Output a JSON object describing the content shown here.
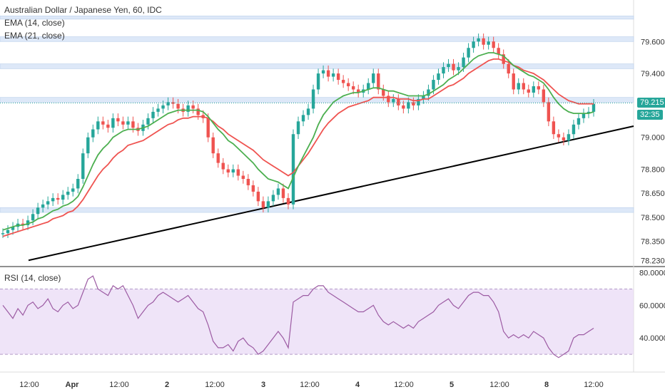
{
  "legend": {
    "symbol": "Australian Dollar / Japanese Yen, 60, IDC",
    "ema14": "EMA (14, close)",
    "ema21": "EMA (21, close)",
    "rsi": "RSI (14, close)"
  },
  "badges": {
    "price": "79.215",
    "countdown": "32:35"
  },
  "colors": {
    "up": "#26a69a",
    "down": "#ef5350",
    "ema14": "#4caf50",
    "ema21": "#ef5350",
    "trend": "#000000",
    "rsi_line": "#9c5ba3",
    "rsi_band": "#e8d9f5",
    "zone": "#dde8f8",
    "price_tag": "#26a69a",
    "countdown_tag": "#26a69a"
  },
  "chart_data": {
    "type": "candlestick",
    "price_axis": {
      "ticks": [
        "79.600",
        "79.400",
        "79.215",
        "79.000",
        "78.800",
        "78.650",
        "78.500",
        "78.350",
        "78.230"
      ]
    },
    "time_axis": {
      "ticks": [
        "12:00",
        "Apr",
        "12:00",
        "2",
        "12:00",
        "3",
        "12:00",
        "4",
        "12:00",
        "5",
        "12:00",
        "8",
        "12:00"
      ]
    },
    "resistance_zones": [
      [
        79.74,
        79.76
      ],
      [
        79.6,
        79.63
      ],
      [
        79.43,
        79.46
      ],
      [
        79.22,
        79.25
      ],
      [
        78.53,
        78.56
      ]
    ],
    "trendline": {
      "start": 78.23,
      "end": 79.07
    },
    "last_price": 79.215,
    "closes": [
      78.4,
      78.42,
      78.44,
      78.46,
      78.45,
      78.48,
      78.52,
      78.56,
      78.58,
      78.6,
      78.62,
      78.61,
      78.64,
      78.66,
      78.68,
      78.74,
      78.9,
      79.0,
      79.05,
      79.1,
      79.08,
      79.06,
      79.12,
      79.1,
      79.08,
      79.1,
      79.06,
      79.04,
      79.08,
      79.12,
      79.16,
      79.18,
      79.2,
      79.22,
      79.21,
      79.18,
      79.16,
      79.2,
      79.18,
      79.14,
      79.12,
      79.0,
      78.9,
      78.84,
      78.8,
      78.78,
      78.8,
      78.76,
      78.74,
      78.7,
      78.66,
      78.6,
      78.56,
      78.6,
      78.64,
      78.68,
      78.62,
      78.58,
      79.02,
      79.1,
      79.14,
      79.18,
      79.3,
      79.4,
      79.42,
      79.38,
      79.4,
      79.36,
      79.34,
      79.32,
      79.3,
      79.28,
      79.3,
      79.34,
      79.4,
      79.3,
      79.26,
      79.22,
      79.24,
      79.2,
      79.18,
      79.22,
      79.2,
      79.24,
      79.26,
      79.3,
      79.36,
      79.4,
      79.44,
      79.46,
      79.42,
      79.44,
      79.5,
      79.56,
      79.6,
      79.62,
      79.58,
      79.6,
      79.56,
      79.52,
      79.46,
      79.4,
      79.3,
      79.34,
      79.3,
      79.28,
      79.32,
      79.3,
      79.22,
      79.1,
      79.02,
      79.0,
      78.98,
      79.02,
      79.08,
      79.12,
      79.15,
      79.16,
      79.21
    ],
    "ema14": [
      78.42,
      78.43,
      78.44,
      78.45,
      78.45,
      78.46,
      78.47,
      78.49,
      78.5,
      78.52,
      78.54,
      78.55,
      78.57,
      78.58,
      78.6,
      78.63,
      78.69,
      78.76,
      78.83,
      78.89,
      78.93,
      78.96,
      79.0,
      79.02,
      79.04,
      79.05,
      79.05,
      79.05,
      79.06,
      79.07,
      79.09,
      79.11,
      79.13,
      79.15,
      79.16,
      79.17,
      79.17,
      79.17,
      79.17,
      79.17,
      79.16,
      79.13,
      79.09,
      79.05,
      79.02,
      78.98,
      78.96,
      78.93,
      78.9,
      78.87,
      78.84,
      78.8,
      78.77,
      78.74,
      78.73,
      78.72,
      78.7,
      78.68,
      78.75,
      78.82,
      78.88,
      78.94,
      79.0,
      79.08,
      79.14,
      79.18,
      79.22,
      79.24,
      79.26,
      79.27,
      79.28,
      79.28,
      79.29,
      79.3,
      79.31,
      79.31,
      79.3,
      79.29,
      79.29,
      79.28,
      79.27,
      79.26,
      79.26,
      79.26,
      79.26,
      79.27,
      79.29,
      79.31,
      79.33,
      79.36,
      79.38,
      79.4,
      79.43,
      79.46,
      79.49,
      79.51,
      79.52,
      79.53,
      79.53,
      79.52,
      79.51,
      79.48,
      79.45,
      79.43,
      79.41,
      79.39,
      79.38,
      79.36,
      79.34,
      79.3,
      79.25,
      79.21,
      79.18,
      79.16,
      79.15,
      79.15,
      79.15,
      79.15,
      79.16
    ],
    "ema21": [
      78.38,
      78.39,
      78.4,
      78.41,
      78.42,
      78.43,
      78.44,
      78.45,
      78.46,
      78.47,
      78.49,
      78.5,
      78.51,
      78.53,
      78.54,
      78.57,
      78.61,
      78.66,
      78.71,
      78.76,
      78.8,
      78.83,
      78.87,
      78.9,
      78.92,
      78.95,
      78.96,
      78.97,
      78.98,
      79.0,
      79.02,
      79.04,
      79.06,
      79.08,
      79.09,
      79.11,
      79.12,
      79.12,
      79.13,
      79.13,
      79.13,
      79.12,
      79.1,
      79.07,
      79.05,
      79.02,
      79.0,
      78.98,
      78.96,
      78.94,
      78.92,
      78.89,
      78.86,
      78.84,
      78.82,
      78.8,
      78.78,
      78.76,
      78.78,
      78.82,
      78.86,
      78.9,
      78.95,
      79.0,
      79.05,
      79.09,
      79.12,
      79.15,
      79.17,
      79.19,
      79.2,
      79.21,
      79.22,
      79.23,
      79.25,
      79.25,
      79.25,
      79.25,
      79.25,
      79.24,
      79.24,
      79.24,
      79.23,
      79.23,
      79.24,
      79.24,
      79.26,
      79.28,
      79.3,
      79.32,
      79.33,
      79.35,
      79.37,
      79.4,
      79.42,
      79.44,
      79.46,
      79.48,
      79.49,
      79.49,
      79.48,
      79.47,
      79.45,
      79.44,
      79.42,
      79.41,
      79.4,
      79.38,
      79.36,
      79.33,
      79.3,
      79.27,
      79.25,
      79.23,
      79.22,
      79.21,
      79.21,
      79.21,
      79.21
    ],
    "rsi": {
      "band": [
        30,
        70
      ],
      "ticks": [
        "80.0000",
        "60.0000",
        "40.0000"
      ],
      "values": [
        60,
        56,
        52,
        58,
        54,
        60,
        62,
        58,
        60,
        64,
        58,
        56,
        60,
        62,
        58,
        60,
        68,
        76,
        78,
        70,
        68,
        66,
        72,
        70,
        72,
        66,
        60,
        52,
        56,
        60,
        62,
        66,
        68,
        66,
        64,
        62,
        64,
        66,
        62,
        58,
        56,
        48,
        38,
        34,
        34,
        36,
        32,
        38,
        40,
        36,
        34,
        30,
        32,
        36,
        40,
        44,
        40,
        34,
        62,
        64,
        66,
        66,
        70,
        72,
        72,
        68,
        66,
        64,
        62,
        60,
        58,
        56,
        56,
        58,
        60,
        54,
        50,
        48,
        50,
        48,
        46,
        48,
        46,
        50,
        52,
        54,
        56,
        60,
        62,
        64,
        60,
        58,
        62,
        66,
        68,
        68,
        66,
        66,
        62,
        56,
        44,
        40,
        42,
        40,
        42,
        40,
        44,
        42,
        40,
        34,
        30,
        28,
        30,
        32,
        40,
        42,
        42,
        44,
        46
      ]
    }
  }
}
